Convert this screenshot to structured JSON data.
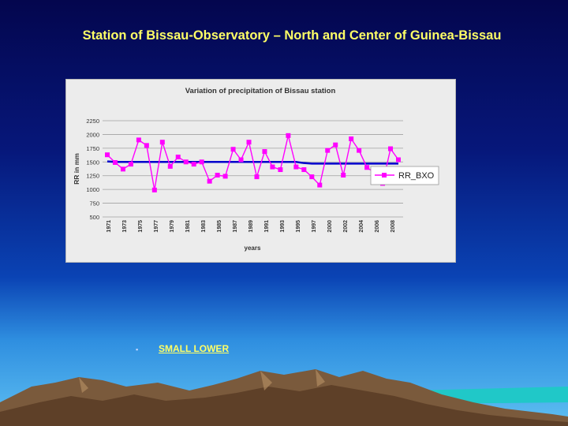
{
  "slide": {
    "title": "Station of Bissau-Observatory – North and Center of Guinea-Bissau",
    "bullet_text": "SMALL LOWER"
  },
  "colors": {
    "title": "#ffff66",
    "series": "#ff00ff",
    "trend": "#0000cc",
    "grid": "#a0a0a0"
  },
  "chart_data": {
    "type": "line",
    "title": "Variation of precipitation of Bissau station",
    "xlabel": "years",
    "ylabel": "RR in mm",
    "ylim": [
      500,
      2250
    ],
    "yticks": [
      500,
      750,
      1000,
      1250,
      1500,
      1750,
      2000,
      2250
    ],
    "xtick_labels": [
      "1971",
      "1973",
      "1975",
      "1977",
      "1979",
      "1981",
      "1983",
      "1985",
      "1987",
      "1989",
      "1991",
      "1993",
      "1995",
      "1997",
      "2000",
      "2002",
      "2004",
      "2006",
      "2008"
    ],
    "grid": true,
    "legend_position": "right",
    "series": [
      {
        "name": "RR_BXO",
        "values": [
          1630,
          1490,
          1370,
          1460,
          1900,
          1800,
          990,
          1860,
          1420,
          1590,
          1500,
          1460,
          1500,
          1150,
          1260,
          1240,
          1730,
          1540,
          1860,
          1230,
          1690,
          1410,
          1360,
          1980,
          1410,
          1360,
          1230,
          1080,
          1710,
          1810,
          1260,
          1920,
          1710,
          1400,
          1300,
          1110,
          1740,
          1540
        ]
      }
    ],
    "trend": {
      "values": [
        1510,
        1500,
        1500,
        1500,
        1500,
        1500,
        1500,
        1500,
        1500,
        1500,
        1500,
        1500,
        1500,
        1500,
        1500,
        1500,
        1500,
        1500,
        1500,
        1500,
        1500,
        1500,
        1500,
        1500,
        1500,
        1480,
        1470,
        1470,
        1470,
        1470,
        1470,
        1470,
        1470,
        1470,
        1470,
        1470,
        1470,
        1470
      ]
    }
  }
}
